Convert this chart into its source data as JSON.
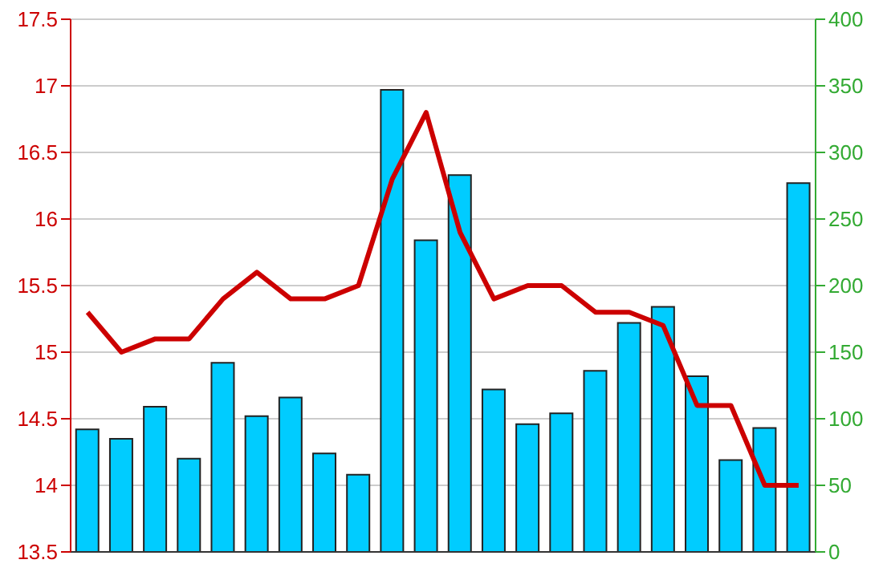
{
  "chart_data": {
    "type": "bar",
    "categories": [
      null,
      null,
      null,
      null,
      null,
      null,
      null,
      null,
      null,
      null,
      null,
      null,
      null,
      null,
      null,
      null,
      null,
      null,
      null,
      null,
      null,
      null
    ],
    "series": [
      {
        "color": "#00ccff",
        "values": [
          14.42,
          14.35,
          14.59,
          14.2,
          14.92,
          14.52,
          14.66,
          14.24,
          14.08,
          16.97,
          15.84,
          16.33,
          14.72,
          14.46,
          14.54,
          14.86,
          15.22,
          15.34,
          14.82,
          14.19,
          14.43,
          16.27
        ]
      },
      {
        "type": "line",
        "axis": "y2",
        "color": "#cc0000",
        "values": [
          180,
          150,
          160,
          160,
          190,
          210,
          190,
          190,
          200,
          280,
          330,
          240,
          190,
          200,
          200,
          180,
          180,
          170,
          110,
          110,
          50,
          50
        ]
      }
    ],
    "ylim": [
      13.5,
      17.5
    ],
    "yticks": [
      13.5,
      14,
      14.5,
      15,
      15.5,
      16,
      16.5,
      17,
      17.5
    ],
    "y2lim": [
      0,
      400
    ],
    "y2ticks": [
      0,
      50,
      100,
      150,
      200,
      250,
      300,
      350,
      400
    ],
    "grid": "y",
    "marker": "none",
    "line_style": "solid"
  }
}
